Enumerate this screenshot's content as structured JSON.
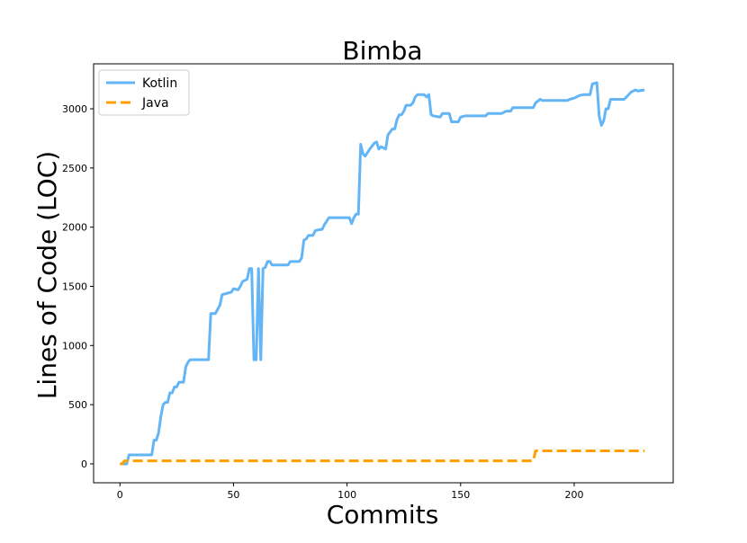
{
  "chart_data": {
    "type": "line",
    "title": "Bimba",
    "xlabel": "Commits",
    "ylabel": "Lines of Code (LOC)",
    "xlim": [
      -11.6,
      243.6
    ],
    "ylim": [
      -160,
      3380
    ],
    "xticks": [
      0,
      50,
      100,
      150,
      200
    ],
    "yticks": [
      0,
      500,
      1000,
      1500,
      2000,
      2500,
      3000
    ],
    "grid": false,
    "legend": "top-left",
    "series": [
      {
        "name": "Kotlin",
        "color": "#64b5f6",
        "dash": "solid",
        "points": [
          [
            0,
            0
          ],
          [
            3,
            0
          ],
          [
            4,
            75
          ],
          [
            14,
            75
          ],
          [
            15,
            200
          ],
          [
            16,
            200
          ],
          [
            17,
            260
          ],
          [
            18,
            400
          ],
          [
            19,
            500
          ],
          [
            20,
            520
          ],
          [
            21,
            520
          ],
          [
            22,
            600
          ],
          [
            23,
            600
          ],
          [
            24,
            650
          ],
          [
            25,
            650
          ],
          [
            26,
            690
          ],
          [
            28,
            690
          ],
          [
            29,
            820
          ],
          [
            30,
            860
          ],
          [
            31,
            880
          ],
          [
            32,
            880
          ],
          [
            39,
            880
          ],
          [
            40,
            1270
          ],
          [
            42,
            1270
          ],
          [
            44,
            1340
          ],
          [
            45,
            1430
          ],
          [
            47,
            1440
          ],
          [
            49,
            1450
          ],
          [
            50,
            1480
          ],
          [
            52,
            1470
          ],
          [
            53,
            1500
          ],
          [
            54,
            1540
          ],
          [
            56,
            1560
          ],
          [
            57,
            1650
          ],
          [
            58,
            1650
          ],
          [
            59,
            880
          ],
          [
            60,
            880
          ],
          [
            61,
            1650
          ],
          [
            62,
            880
          ],
          [
            63,
            1650
          ],
          [
            64,
            1660
          ],
          [
            65,
            1710
          ],
          [
            66,
            1710
          ],
          [
            67,
            1680
          ],
          [
            74,
            1680
          ],
          [
            75,
            1710
          ],
          [
            79,
            1710
          ],
          [
            80,
            1740
          ],
          [
            81,
            1890
          ],
          [
            82,
            1900
          ],
          [
            83,
            1930
          ],
          [
            85,
            1930
          ],
          [
            86,
            1970
          ],
          [
            88,
            1980
          ],
          [
            89,
            1980
          ],
          [
            90,
            2020
          ],
          [
            92,
            2080
          ],
          [
            101,
            2080
          ],
          [
            102,
            2030
          ],
          [
            103,
            2080
          ],
          [
            104,
            2110
          ],
          [
            105,
            2110
          ],
          [
            106,
            2700
          ],
          [
            107,
            2620
          ],
          [
            108,
            2600
          ],
          [
            110,
            2660
          ],
          [
            112,
            2710
          ],
          [
            113,
            2720
          ],
          [
            114,
            2660
          ],
          [
            115,
            2680
          ],
          [
            117,
            2660
          ],
          [
            118,
            2780
          ],
          [
            120,
            2830
          ],
          [
            121,
            2830
          ],
          [
            122,
            2910
          ],
          [
            123,
            2950
          ],
          [
            124,
            2950
          ],
          [
            125,
            2980
          ],
          [
            126,
            3030
          ],
          [
            128,
            3030
          ],
          [
            129,
            3050
          ],
          [
            130,
            3100
          ],
          [
            131,
            3120
          ],
          [
            134,
            3120
          ],
          [
            135,
            3100
          ],
          [
            136,
            3120
          ],
          [
            137,
            2950
          ],
          [
            138,
            2940
          ],
          [
            141,
            2930
          ],
          [
            142,
            2960
          ],
          [
            145,
            2960
          ],
          [
            146,
            2890
          ],
          [
            149,
            2890
          ],
          [
            150,
            2930
          ],
          [
            152,
            2940
          ],
          [
            161,
            2940
          ],
          [
            162,
            2960
          ],
          [
            168,
            2960
          ],
          [
            170,
            2980
          ],
          [
            172,
            2980
          ],
          [
            173,
            3010
          ],
          [
            182,
            3010
          ],
          [
            183,
            3050
          ],
          [
            185,
            3080
          ],
          [
            186,
            3070
          ],
          [
            197,
            3070
          ],
          [
            198,
            3080
          ],
          [
            200,
            3090
          ],
          [
            202,
            3110
          ],
          [
            204,
            3120
          ],
          [
            207,
            3120
          ],
          [
            208,
            3210
          ],
          [
            210,
            3220
          ],
          [
            211,
            2940
          ],
          [
            212,
            2860
          ],
          [
            213,
            2900
          ],
          [
            214,
            3000
          ],
          [
            215,
            3000
          ],
          [
            216,
            3080
          ],
          [
            222,
            3080
          ],
          [
            223,
            3100
          ],
          [
            224,
            3120
          ],
          [
            225,
            3140
          ],
          [
            227,
            3160
          ],
          [
            228,
            3150
          ],
          [
            231,
            3160
          ]
        ]
      },
      {
        "name": "Java",
        "color": "#ffa000",
        "dash": "dashed",
        "points": [
          [
            0,
            0
          ],
          [
            1,
            0
          ],
          [
            2,
            25
          ],
          [
            182,
            25
          ],
          [
            183,
            110
          ],
          [
            231,
            110
          ]
        ]
      }
    ]
  }
}
